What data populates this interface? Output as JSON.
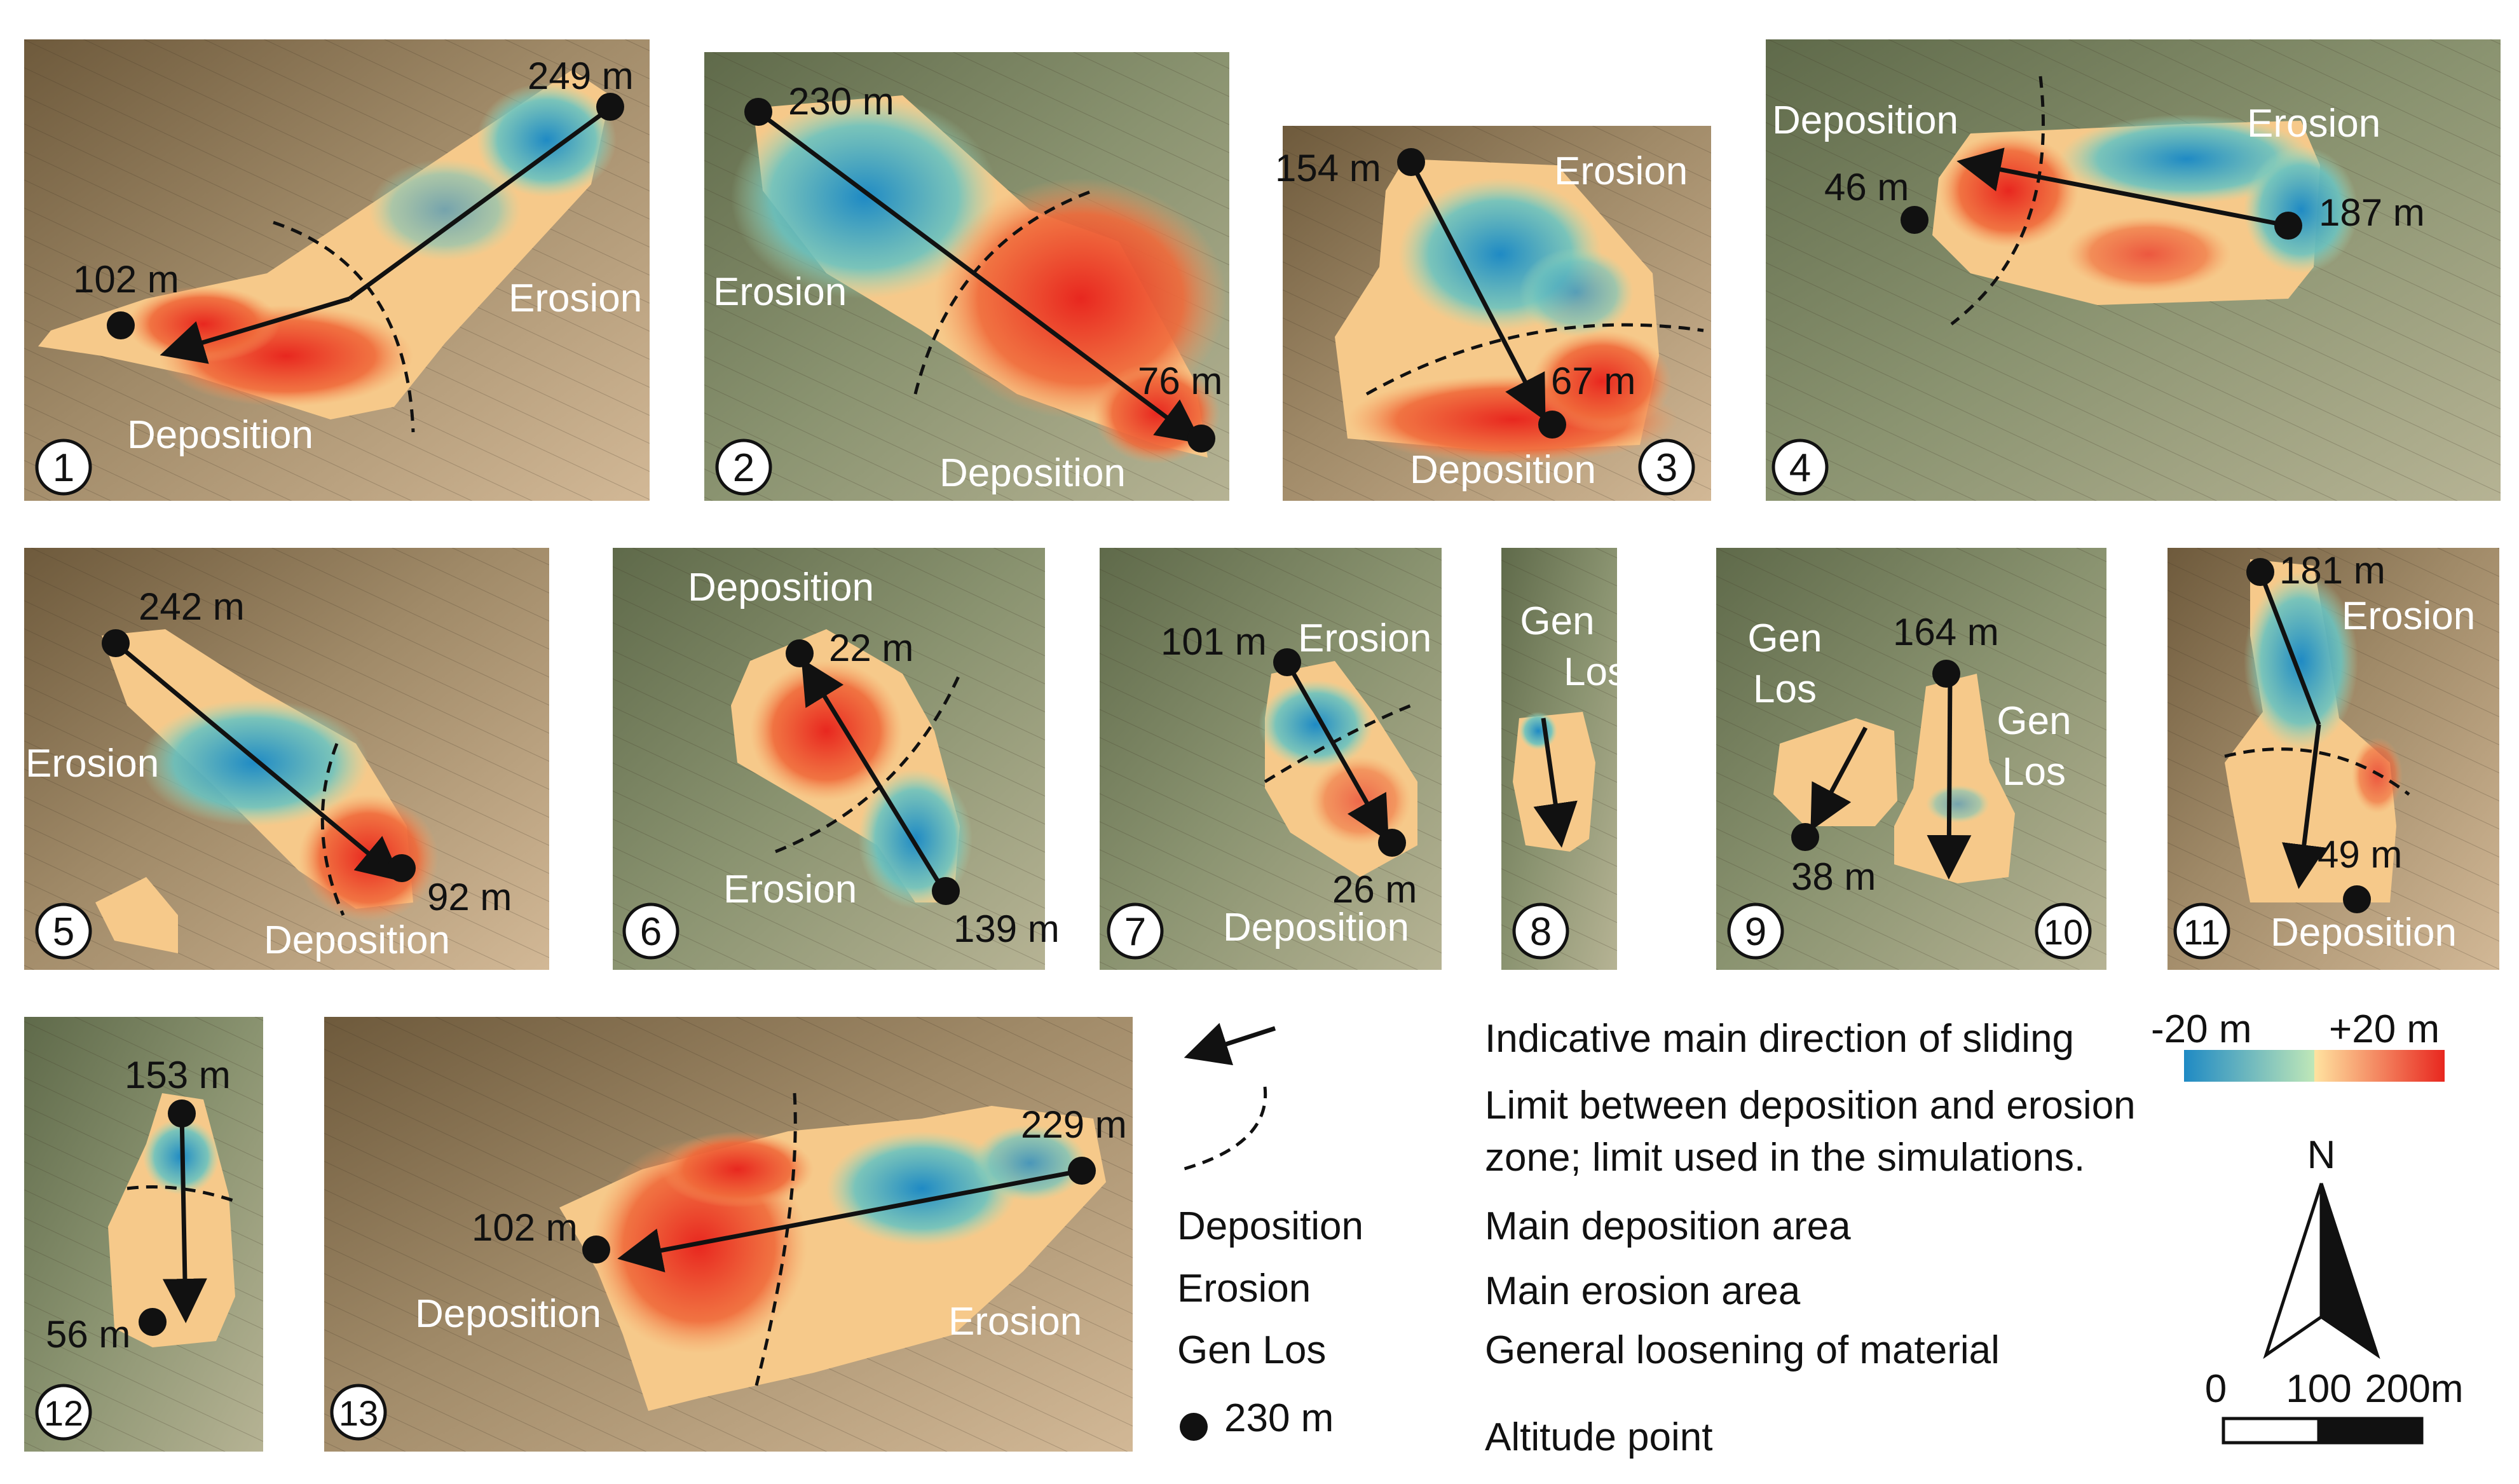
{
  "panels": [
    {
      "number": "1",
      "labels": [
        "Erosion",
        "Deposition"
      ],
      "altitudes": [
        "249 m",
        "102 m"
      ]
    },
    {
      "number": "2",
      "labels": [
        "Erosion",
        "Deposition"
      ],
      "altitudes": [
        "230 m",
        "76 m"
      ]
    },
    {
      "number": "3",
      "labels": [
        "Erosion",
        "Deposition"
      ],
      "altitudes": [
        "154 m",
        "67 m"
      ]
    },
    {
      "number": "4",
      "labels": [
        "Deposition",
        "Erosion"
      ],
      "altitudes": [
        "46 m",
        "187 m"
      ]
    },
    {
      "number": "5",
      "labels": [
        "Erosion",
        "Deposition"
      ],
      "altitudes": [
        "242 m",
        "92 m"
      ]
    },
    {
      "number": "6",
      "labels": [
        "Deposition",
        "Erosion"
      ],
      "altitudes": [
        "22 m",
        "139 m"
      ]
    },
    {
      "number": "7",
      "labels": [
        "Erosion",
        "Deposition"
      ],
      "altitudes": [
        "101 m",
        "26 m"
      ]
    },
    {
      "number": "8",
      "labels": [
        "Gen",
        "Los"
      ],
      "altitudes": []
    },
    {
      "number": "9",
      "labels": [
        "Gen",
        "Los"
      ],
      "altitudes": [
        "38 m"
      ]
    },
    {
      "number": "10",
      "labels": [
        "Gen",
        "Los"
      ],
      "altitudes": [
        "164 m"
      ]
    },
    {
      "number": "11",
      "labels": [
        "Erosion",
        "Deposition"
      ],
      "altitudes": [
        "181 m",
        "49 m"
      ]
    },
    {
      "number": "12",
      "labels": [],
      "altitudes": [
        "153 m",
        "56 m"
      ]
    },
    {
      "number": "13",
      "labels": [
        "Deposition",
        "Erosion"
      ],
      "altitudes": [
        "229 m",
        "102 m"
      ]
    }
  ],
  "legend": {
    "arrow_text": "Indicative main direction of sliding",
    "limit_text_1": "Limit between deposition and erosion",
    "limit_text_2": "zone; limit used in the simulations.",
    "deposition_key": "Deposition",
    "deposition_text": "Main deposition area",
    "erosion_key": "Erosion",
    "erosion_text": "Main erosion area",
    "genlos_key": "Gen Los",
    "genlos_text": "General loosening of material",
    "altitude_key": "230 m",
    "altitude_text": "Altitude point",
    "scale_min": "-20 m",
    "scale_max": "+20 m",
    "north": "N",
    "scalebar_labels": [
      "0",
      "100",
      "200m"
    ]
  },
  "colors": {
    "erosion": "#1f8ac4",
    "deposition": "#e8271f",
    "neutral": "#f6c98a"
  }
}
